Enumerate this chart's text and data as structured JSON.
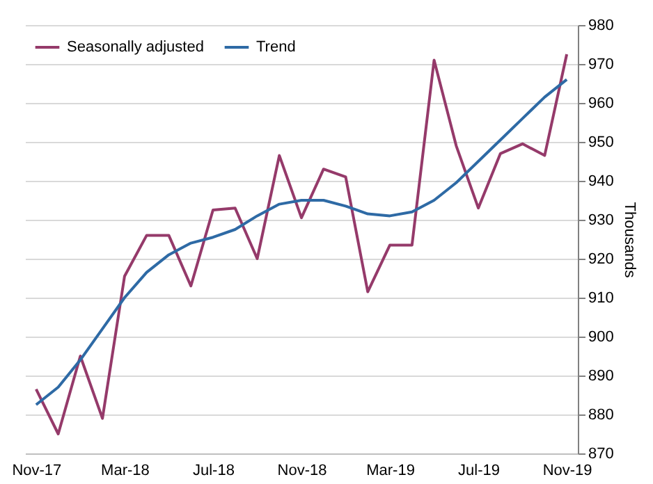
{
  "chart_data": {
    "type": "line",
    "ylabel": "Thousands",
    "categories": [
      "Nov-17",
      null,
      null,
      null,
      "Mar-18",
      null,
      null,
      null,
      "Jul-18",
      null,
      null,
      null,
      "Nov-18",
      null,
      null,
      null,
      "Mar-19",
      null,
      null,
      null,
      "Jul-19",
      null,
      null,
      null,
      "Nov-19"
    ],
    "series": [
      {
        "name": "Seasonally adjusted",
        "color": "#953a6a",
        "values": [
          886.5,
          875,
          895,
          879,
          915.5,
          926,
          926,
          913,
          932.5,
          933,
          920,
          946.5,
          930.5,
          943,
          941,
          911.5,
          923.5,
          923.5,
          971,
          949,
          933,
          947,
          949.5,
          946.5,
          972.5
        ]
      },
      {
        "name": "Trend",
        "color": "#2e6aa5",
        "values": [
          882.5,
          887,
          894,
          902,
          910,
          916.5,
          921,
          924,
          925.5,
          927.5,
          931,
          934,
          935,
          935,
          933.5,
          931.5,
          931,
          932,
          935,
          939.5,
          945,
          950.5,
          956,
          961.5,
          966
        ]
      }
    ],
    "ylim": [
      870,
      980
    ],
    "yticks": [
      870,
      880,
      890,
      900,
      910,
      920,
      930,
      940,
      950,
      960,
      970,
      980
    ],
    "grid": "y",
    "legend": "top left",
    "marker": "none",
    "line_style": "solid"
  }
}
